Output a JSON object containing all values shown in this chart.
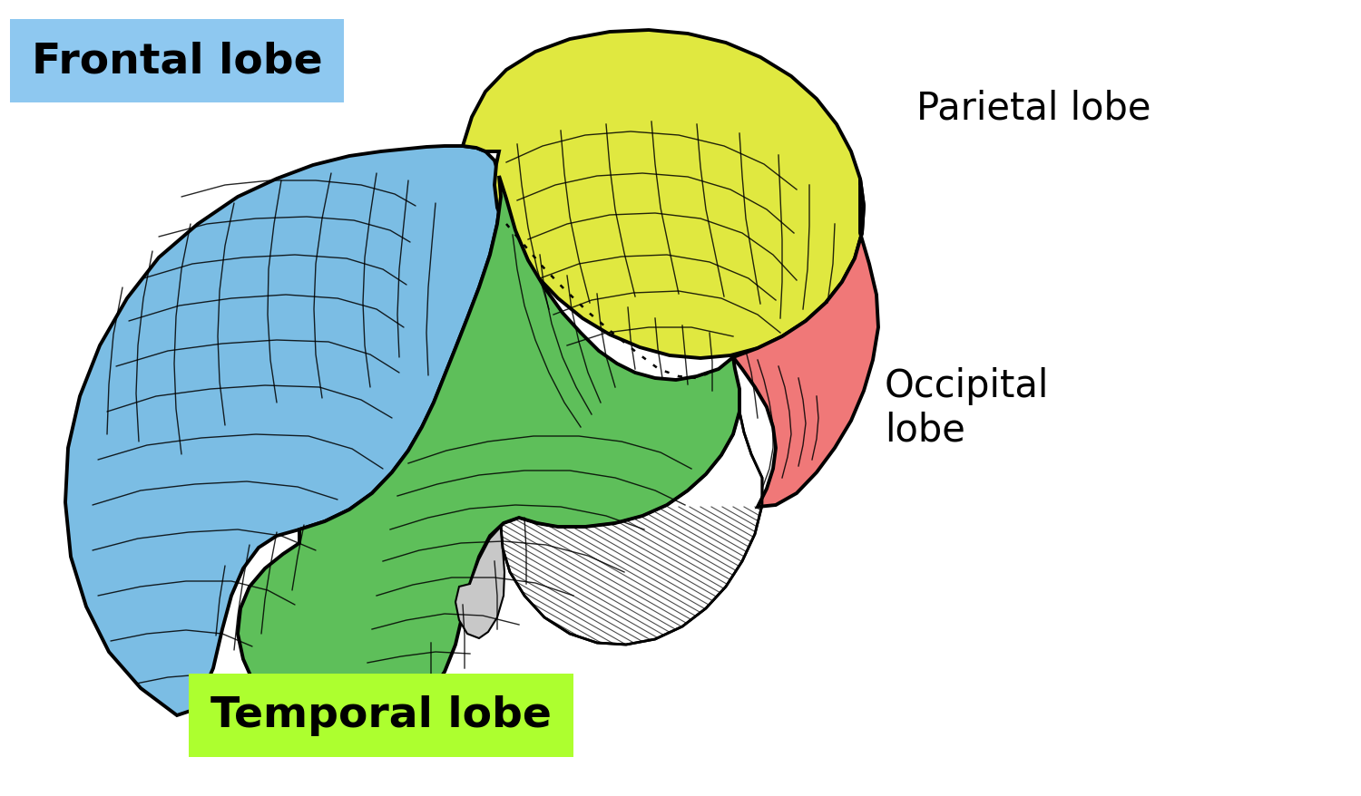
{
  "background_color": "#ffffff",
  "labels": {
    "frontal": "Frontal lobe",
    "parietal": "Parietal lobe",
    "temporal": "Temporal lobe",
    "occipital": "Occipital\nlobe"
  },
  "label_colors": {
    "frontal_bg": "#8EC8F0",
    "temporal_bg": "#ADFF2F"
  },
  "lobe_colors": {
    "frontal": "#7BBDE4",
    "parietal": "#E0E840",
    "temporal": "#5EBF5A",
    "occipital": "#F07878",
    "cerebellum_bg": "#E8E8E8"
  },
  "figsize": [
    15.0,
    8.79
  ],
  "dpi": 100
}
